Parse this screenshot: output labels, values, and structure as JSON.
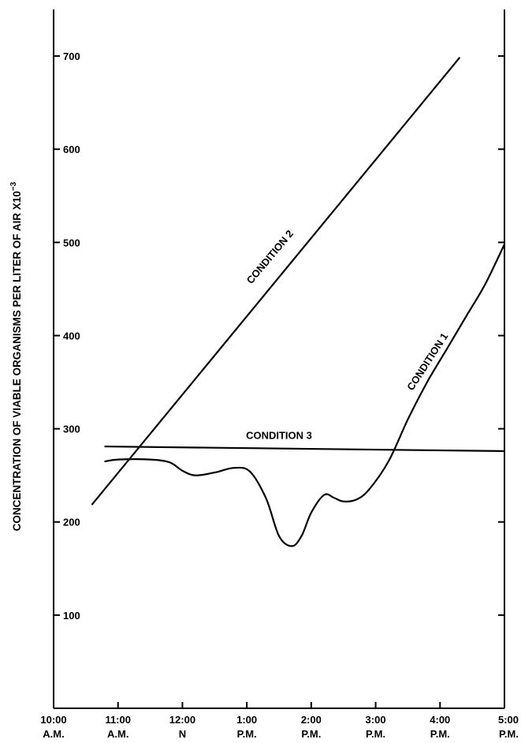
{
  "chart_data": {
    "type": "line",
    "ylabel": "CONCENTRATION OF VIABLE ORGANISMS PER LITER OF AIR X10",
    "ylabel_exponent": "−3",
    "xlim": [
      10,
      17
    ],
    "ylim": [
      0,
      750
    ],
    "x_ticks": [
      {
        "value": 10,
        "line1": "10:00",
        "line2": "A.M."
      },
      {
        "value": 11,
        "line1": "11:00",
        "line2": "A.M."
      },
      {
        "value": 12,
        "line1": "12:00",
        "line2": "N"
      },
      {
        "value": 13,
        "line1": "1:00",
        "line2": "P.M."
      },
      {
        "value": 14,
        "line1": "2:00",
        "line2": "P.M."
      },
      {
        "value": 15,
        "line1": "3:00",
        "line2": "P.M."
      },
      {
        "value": 16,
        "line1": "4:00",
        "line2": "P.M."
      },
      {
        "value": 17,
        "line1": "5:00",
        "line2": "P.M."
      }
    ],
    "y_ticks": [
      100,
      200,
      300,
      400,
      500,
      600,
      700
    ],
    "grid": false,
    "legend": "none",
    "series": [
      {
        "name": "CONDITION 1",
        "label_angle": -57,
        "label_anchor": [
          15.85,
          370
        ],
        "points": [
          [
            10.8,
            265
          ],
          [
            11.0,
            267
          ],
          [
            11.5,
            267
          ],
          [
            11.8,
            264
          ],
          [
            12.0,
            255
          ],
          [
            12.2,
            250
          ],
          [
            12.5,
            253
          ],
          [
            12.8,
            258
          ],
          [
            13.05,
            254
          ],
          [
            13.3,
            225
          ],
          [
            13.5,
            185
          ],
          [
            13.7,
            174
          ],
          [
            13.85,
            185
          ],
          [
            14.0,
            210
          ],
          [
            14.2,
            229
          ],
          [
            14.35,
            226
          ],
          [
            14.5,
            222
          ],
          [
            14.7,
            224
          ],
          [
            14.9,
            235
          ],
          [
            15.2,
            265
          ],
          [
            15.5,
            310
          ],
          [
            15.8,
            350
          ],
          [
            16.1,
            385
          ],
          [
            16.4,
            420
          ],
          [
            16.7,
            455
          ],
          [
            17.0,
            498
          ]
        ]
      },
      {
        "name": "CONDITION 2",
        "label_angle": -50,
        "label_anchor": [
          13.4,
          482
        ],
        "points": [
          [
            10.6,
            219
          ],
          [
            16.3,
            698
          ]
        ]
      },
      {
        "name": "CONDITION 3",
        "label_angle": 0,
        "label_anchor": [
          13.5,
          289
        ],
        "points": [
          [
            10.8,
            281
          ],
          [
            17.0,
            276
          ]
        ]
      }
    ]
  }
}
